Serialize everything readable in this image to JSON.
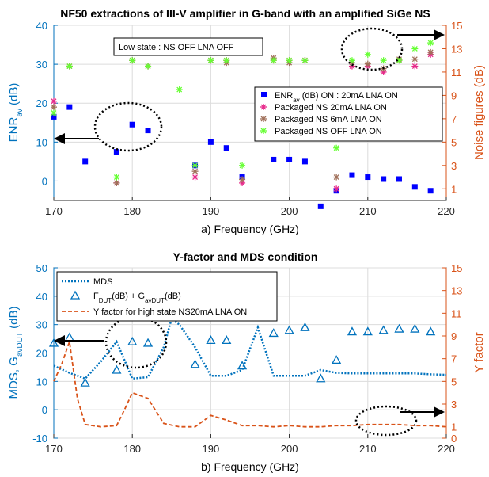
{
  "colors": {
    "left_axis": "#0072BD",
    "right_axis": "#D95319",
    "enr": "#0000FF",
    "ns20": "#E7298A",
    "ns6": "#A0705A",
    "nsoff": "#66FF33"
  },
  "chart_data": [
    {
      "type": "scatter",
      "title": "NF50 extractions of III-V amplifier in G-band with an amplified SiGe NS",
      "xlabel": "a) Frequency (GHz)",
      "ylabel": "ENR",
      "ylabel_sub": "av",
      "ylabel_unit": " (dB)",
      "y2label": "Noise figures (dB)",
      "xlim": [
        170,
        220
      ],
      "ylim": [
        -5,
        40
      ],
      "y2lim": [
        0,
        15
      ],
      "xticks": [
        "170",
        "180",
        "190",
        "200",
        "210",
        "220"
      ],
      "yticks": [
        "0",
        "10",
        "20",
        "30",
        "40"
      ],
      "y2ticks": [
        "1",
        "3",
        "5",
        "7",
        "9",
        "11",
        "13",
        "15"
      ],
      "annotation": "Low state : NS OFF LNA OFF",
      "series": [
        {
          "name": "ENR",
          "name_sub": "av",
          "name_rest": " (dB) ON : 20mA LNA ON",
          "axis": "left",
          "marker": "square",
          "x": [
            170,
            172,
            174,
            178,
            180,
            182,
            188,
            190,
            192,
            194,
            198,
            200,
            202,
            204,
            206,
            208,
            210,
            212,
            214,
            216,
            218
          ],
          "y": [
            16.5,
            19,
            5,
            7.5,
            14.5,
            13,
            4,
            10,
            8.5,
            1,
            5.5,
            5.5,
            5,
            -6.5,
            -2.5,
            1.5,
            1,
            0.5,
            0.5,
            -1.5,
            -2.5
          ]
        },
        {
          "name": "Packaged NS 20mA LNA ON",
          "axis": "right",
          "marker": "asterisk",
          "x": [
            170,
            172,
            178,
            180,
            182,
            188,
            190,
            192,
            194,
            198,
            200,
            202,
            206,
            208,
            210,
            212,
            214,
            216,
            218
          ],
          "y": [
            8.5,
            11.5,
            1.5,
            12,
            11.5,
            2,
            12,
            12,
            1.5,
            12,
            12,
            12,
            1,
            11.5,
            11.5,
            11,
            12,
            11.5,
            12.5
          ]
        },
        {
          "name": "Packaged NS 6mA LNA ON",
          "axis": "right",
          "marker": "asterisk",
          "x": [
            170,
            172,
            178,
            180,
            182,
            188,
            190,
            192,
            194,
            198,
            200,
            202,
            206,
            208,
            210,
            212,
            214,
            216,
            218
          ],
          "y": [
            8,
            11.5,
            1.5,
            12,
            11.5,
            2.5,
            12,
            11.8,
            1.8,
            12.2,
            11.8,
            12,
            2,
            11.8,
            11.7,
            11.3,
            12.1,
            12.1,
            12.7
          ]
        },
        {
          "name": "Packaged NS OFF LNA ON",
          "axis": "right",
          "marker": "asterisk",
          "x": [
            170,
            172,
            178,
            180,
            182,
            186,
            188,
            190,
            192,
            194,
            198,
            200,
            202,
            206,
            208,
            210,
            212,
            214,
            216,
            218
          ],
          "y": [
            7.5,
            11.5,
            2,
            12,
            11.5,
            9.5,
            3,
            12,
            12,
            3,
            12,
            12,
            12,
            4.5,
            12,
            12.5,
            12,
            12,
            13,
            13.5
          ]
        }
      ]
    },
    {
      "type": "line",
      "title": "Y-factor and MDS condition",
      "xlabel": "b) Frequency (GHz)",
      "ylabel": "MDS, G",
      "ylabel_sub": "avDUT",
      "ylabel_unit": " (dB)",
      "y2label": "Y factor",
      "xlim": [
        170,
        220
      ],
      "ylim": [
        -10,
        50
      ],
      "y2lim": [
        0,
        15
      ],
      "xticks": [
        "170",
        "180",
        "190",
        "200",
        "210",
        "220"
      ],
      "yticks": [
        "-10",
        "0",
        "10",
        "20",
        "30",
        "40",
        "50"
      ],
      "y2ticks": [
        "0",
        "1",
        "3",
        "5",
        "7",
        "9",
        "11",
        "13",
        "15"
      ],
      "series": [
        {
          "name": "MDS",
          "axis": "left",
          "style": "dotted",
          "x": [
            170,
            172,
            174,
            176,
            178,
            180,
            182,
            184,
            185,
            186,
            188,
            190,
            192,
            194,
            196,
            198,
            200,
            202,
            204,
            206,
            208,
            210,
            212,
            214,
            216,
            218,
            220
          ],
          "y": [
            15.5,
            13,
            11,
            17,
            24,
            11,
            11.5,
            22,
            32,
            30,
            22,
            12,
            12,
            14,
            29,
            12,
            12,
            12,
            14,
            13,
            12.8,
            12.8,
            12.8,
            12.8,
            12.8,
            12.5,
            12.3
          ]
        },
        {
          "name": "F",
          "name_sub1": "DUT",
          "name_mid": "(dB) + G",
          "name_sub2": "avDUT",
          "name_end": "(dB)",
          "axis": "left",
          "marker": "triangle",
          "x": [
            170,
            172,
            174,
            178,
            180,
            182,
            188,
            190,
            192,
            194,
            198,
            200,
            202,
            204,
            206,
            208,
            210,
            212,
            214,
            216,
            218
          ],
          "y": [
            23.5,
            25.5,
            9.5,
            14,
            24,
            23.5,
            16,
            24.5,
            24.5,
            15.5,
            27,
            28,
            29,
            11,
            17.5,
            27.5,
            27.5,
            28,
            28.5,
            28.5,
            27.5
          ]
        },
        {
          "name": "Y factor for high state NS20mA LNA ON",
          "axis": "right",
          "style": "dashed",
          "x": [
            170,
            171,
            172,
            173,
            174,
            176,
            178,
            179,
            180,
            182,
            184,
            186,
            188,
            190,
            192,
            194,
            196,
            198,
            200,
            202,
            204,
            206,
            208,
            210,
            212,
            214,
            216,
            218,
            220
          ],
          "y": [
            5,
            6.5,
            8.5,
            3.5,
            1.2,
            1,
            1.1,
            2.5,
            4,
            3.5,
            1.3,
            1,
            1,
            2,
            1.6,
            1.1,
            1.1,
            1,
            1.1,
            1,
            1,
            1.1,
            1.1,
            1.2,
            1.2,
            1.2,
            1.1,
            1.1,
            1
          ]
        }
      ]
    }
  ]
}
